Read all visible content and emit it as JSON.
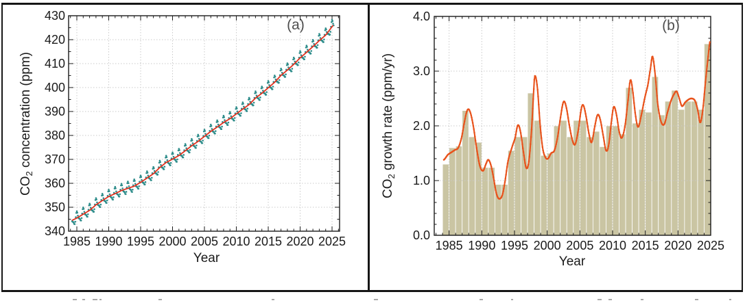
{
  "figure": {
    "panel_count": 2,
    "border_color": "#161616",
    "background": "#ffffff"
  },
  "chart_data": [
    {
      "id": "co2-concentration",
      "type": "line",
      "panel_label": "(a)",
      "panel_label_color": "#4d4d4d",
      "xlabel": "Year",
      "ylabel": {
        "prefix": "CO",
        "sub": "2",
        "suffix": " concentration (ppm)"
      },
      "xlim": [
        1983.71,
        2026.18
      ],
      "ylim": [
        340,
        430
      ],
      "xticks": [
        1985,
        1990,
        1995,
        2000,
        2005,
        2010,
        2015,
        2020,
        2025
      ],
      "yticks": [
        340,
        350,
        360,
        370,
        380,
        390,
        400,
        410,
        420,
        430
      ],
      "ytick_labels": [
        "340",
        "350",
        "360",
        "370",
        "380",
        "390",
        "400",
        "410",
        "420",
        "430"
      ],
      "x_minor_step": 1,
      "y_minor_step": 5,
      "grid": true,
      "series": [
        {
          "name": "monthly-co2-with-seasonal-cycle",
          "style": "dots",
          "color": "#2d8c8a",
          "start_year": 1984,
          "end_year": 2025.33,
          "annual_trend": [
            344.2,
            345.5,
            347.1,
            348.7,
            351.0,
            352.8,
            354.5,
            355.7,
            357.0,
            357.9,
            358.8,
            360.4,
            362.2,
            364.0,
            366.6,
            368.7,
            370.1,
            371.6,
            373.6,
            375.7,
            377.5,
            379.6,
            381.7,
            383.5,
            385.4,
            387.0,
            389.0,
            391.0,
            392.9,
            395.6,
            397.6,
            399.9,
            402.2,
            405.1,
            407.3,
            409.7,
            412.4,
            414.7,
            417.1,
            419.6,
            421.9,
            425.4
          ],
          "seasonal": {
            "a1": 2.1,
            "p1": 1.35,
            "a2": 0.85,
            "p2": 2.0
          }
        },
        {
          "name": "deseasonalized-trend",
          "style": "line",
          "color": "#e0301e"
        }
      ]
    },
    {
      "id": "co2-growth-rate",
      "type": "bar",
      "panel_label": "(b)",
      "panel_label_color": "#4d4d4d",
      "xlabel": "Year",
      "ylabel": {
        "prefix": "CO",
        "sub": "2",
        "suffix": " growth rate (ppm/yr)"
      },
      "xlim": [
        1982.73,
        2025
      ],
      "ylim": [
        0,
        4
      ],
      "xticks": [
        1985,
        1990,
        1995,
        2000,
        2005,
        2010,
        2015,
        2020,
        2025
      ],
      "yticks": [
        0,
        1,
        2,
        3,
        4
      ],
      "ytick_labels": [
        "0.0",
        "1.0",
        "2.0",
        "3.0",
        "4.0"
      ],
      "x_minor_step": 1,
      "y_minor_step": 0.2,
      "grid": true,
      "bars": {
        "name": "annual-growth-rate",
        "color": "#cac5a3",
        "edge_color": "#ffffff",
        "start_year": 1984,
        "values": [
          1.3,
          1.6,
          1.63,
          2.28,
          1.8,
          1.7,
          1.24,
          1.24,
          0.93,
          0.93,
          1.55,
          1.8,
          1.8,
          2.6,
          2.1,
          1.46,
          1.5,
          2.0,
          2.1,
          1.8,
          2.1,
          2.1,
          1.8,
          1.9,
          1.62,
          2.0,
          2.0,
          1.85,
          2.7,
          2.05,
          2.3,
          2.25,
          2.9,
          2.2,
          2.45,
          2.65,
          2.3,
          2.45,
          2.45,
          2.3,
          3.5
        ]
      },
      "line": {
        "name": "smoothed-monthly-growth-rate",
        "color": "#e8531c",
        "points": [
          [
            1984.2,
            1.38
          ],
          [
            1984.8,
            1.47
          ],
          [
            1985.4,
            1.52
          ],
          [
            1985.9,
            1.56
          ],
          [
            1986.4,
            1.6
          ],
          [
            1986.9,
            1.78
          ],
          [
            1987.4,
            2.1
          ],
          [
            1987.8,
            2.29
          ],
          [
            1988.2,
            2.26
          ],
          [
            1988.7,
            2.0
          ],
          [
            1989.2,
            1.6
          ],
          [
            1989.7,
            1.27
          ],
          [
            1990.2,
            1.18
          ],
          [
            1990.7,
            1.32
          ],
          [
            1991.0,
            1.38
          ],
          [
            1991.4,
            1.28
          ],
          [
            1991.8,
            1.05
          ],
          [
            1992.2,
            0.78
          ],
          [
            1992.6,
            0.67
          ],
          [
            1993.1,
            0.72
          ],
          [
            1993.5,
            0.95
          ],
          [
            1994.0,
            1.35
          ],
          [
            1994.6,
            1.6
          ],
          [
            1995.1,
            1.78
          ],
          [
            1995.5,
            2.01
          ],
          [
            1995.9,
            1.9
          ],
          [
            1996.4,
            1.5
          ],
          [
            1996.8,
            1.23
          ],
          [
            1997.2,
            1.35
          ],
          [
            1997.6,
            1.9
          ],
          [
            1997.9,
            2.55
          ],
          [
            1998.1,
            2.91
          ],
          [
            1998.5,
            2.7
          ],
          [
            1998.9,
            2.05
          ],
          [
            1999.3,
            1.6
          ],
          [
            1999.7,
            1.43
          ],
          [
            2000.1,
            1.4
          ],
          [
            2000.6,
            1.5
          ],
          [
            2001.1,
            1.55
          ],
          [
            2001.6,
            1.8
          ],
          [
            2002.1,
            2.2
          ],
          [
            2002.5,
            2.44
          ],
          [
            2002.9,
            2.35
          ],
          [
            2003.4,
            2.0
          ],
          [
            2003.9,
            1.72
          ],
          [
            2004.3,
            1.67
          ],
          [
            2004.8,
            1.95
          ],
          [
            2005.2,
            2.3
          ],
          [
            2005.5,
            2.38
          ],
          [
            2005.9,
            2.2
          ],
          [
            2006.4,
            1.85
          ],
          [
            2006.8,
            1.7
          ],
          [
            2007.3,
            2.0
          ],
          [
            2007.7,
            2.2
          ],
          [
            2008.1,
            2.12
          ],
          [
            2008.6,
            1.8
          ],
          [
            2009.0,
            1.55
          ],
          [
            2009.4,
            1.65
          ],
          [
            2009.9,
            2.15
          ],
          [
            2010.2,
            2.35
          ],
          [
            2010.6,
            2.2
          ],
          [
            2011.0,
            1.9
          ],
          [
            2011.4,
            1.78
          ],
          [
            2011.9,
            2.0
          ],
          [
            2012.4,
            2.5
          ],
          [
            2012.7,
            2.83
          ],
          [
            2013.0,
            2.7
          ],
          [
            2013.5,
            2.2
          ],
          [
            2013.9,
            1.98
          ],
          [
            2014.4,
            2.2
          ],
          [
            2014.9,
            2.5
          ],
          [
            2015.4,
            2.75
          ],
          [
            2015.8,
            3.05
          ],
          [
            2016.1,
            3.27
          ],
          [
            2016.5,
            2.95
          ],
          [
            2016.9,
            2.4
          ],
          [
            2017.4,
            2.08
          ],
          [
            2017.9,
            2.03
          ],
          [
            2018.4,
            2.25
          ],
          [
            2018.9,
            2.45
          ],
          [
            2019.4,
            2.58
          ],
          [
            2019.8,
            2.63
          ],
          [
            2020.2,
            2.5
          ],
          [
            2020.6,
            2.36
          ],
          [
            2021.1,
            2.43
          ],
          [
            2021.6,
            2.48
          ],
          [
            2022.1,
            2.5
          ],
          [
            2022.6,
            2.46
          ],
          [
            2023.0,
            2.3
          ],
          [
            2023.4,
            2.06
          ],
          [
            2023.8,
            2.3
          ],
          [
            2024.2,
            2.8
          ],
          [
            2024.6,
            3.25
          ],
          [
            2024.9,
            3.55
          ]
        ]
      }
    }
  ]
}
